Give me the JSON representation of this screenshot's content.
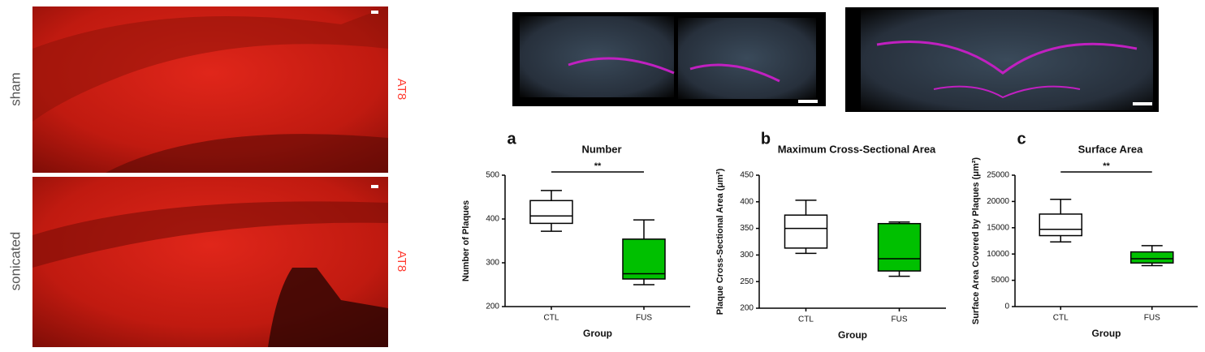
{
  "images": {
    "left_panels": [
      {
        "label": "sham",
        "stain": "AT8"
      },
      {
        "label": "sonicated",
        "stain": "AT8"
      }
    ]
  },
  "chart_data": [
    {
      "type": "box",
      "panel_label": "a",
      "title": "Number",
      "y_label": "Number of Plaques",
      "x_label": "Group",
      "categories": [
        "CTL",
        "FUS"
      ],
      "boxes": [
        {
          "min": 372,
          "q1": 390,
          "median": 407,
          "q3": 442,
          "max": 465,
          "color": "#ffffff"
        },
        {
          "min": 250,
          "q1": 263,
          "median": 275,
          "q3": 354,
          "max": 398,
          "color": "#00c000"
        }
      ],
      "ylim": [
        200,
        500
      ],
      "yticks": [
        200,
        300,
        400,
        500
      ],
      "annotation": "**"
    },
    {
      "type": "box",
      "panel_label": "b",
      "title": "Maximum Cross-Sectional  Area",
      "y_label": "Plaque Cross-Sectional Area (μm²)",
      "x_label": "Group",
      "categories": [
        "CTL",
        "FUS"
      ],
      "boxes": [
        {
          "min": 303,
          "q1": 313,
          "median": 350,
          "q3": 375,
          "max": 403,
          "color": "#ffffff"
        },
        {
          "min": 260,
          "q1": 270,
          "median": 293,
          "q3": 359,
          "max": 362,
          "color": "#00c000"
        }
      ],
      "ylim": [
        200,
        450
      ],
      "yticks": [
        200,
        250,
        300,
        350,
        400,
        450
      ]
    },
    {
      "type": "box",
      "panel_label": "c",
      "title": "Surface Area",
      "y_label": "Surface Area Covered by Plaques (μm²)",
      "x_label": "Group",
      "categories": [
        "CTL",
        "FUS"
      ],
      "boxes": [
        {
          "min": 12300,
          "q1": 13500,
          "median": 14700,
          "q3": 17600,
          "max": 20400,
          "color": "#ffffff"
        },
        {
          "min": 7800,
          "q1": 8300,
          "median": 9100,
          "q3": 10400,
          "max": 11600,
          "color": "#00c000"
        }
      ],
      "ylim": [
        0,
        25000
      ],
      "yticks": [
        0,
        5000,
        10000,
        15000,
        20000,
        25000
      ],
      "annotation": "**"
    }
  ]
}
